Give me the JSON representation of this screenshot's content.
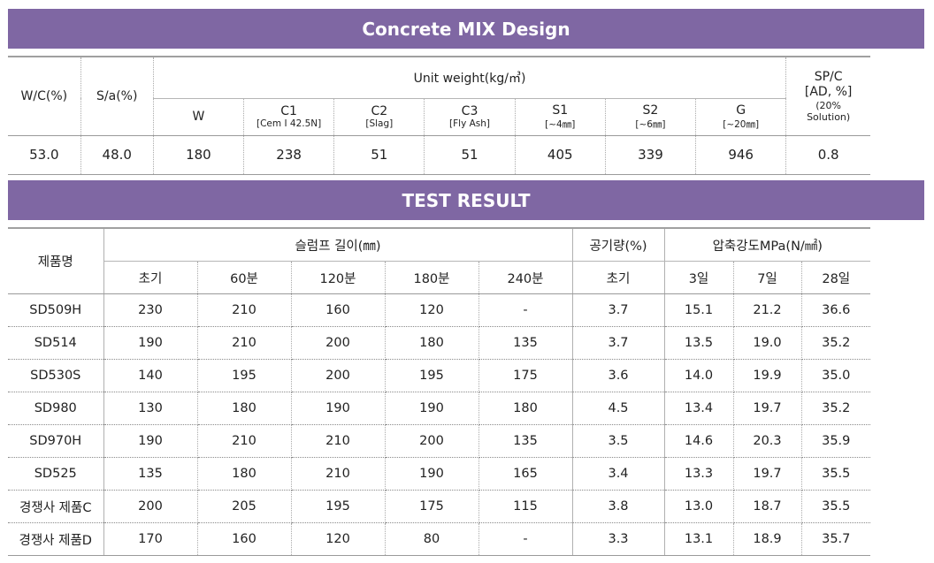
{
  "mix": {
    "title": "Concrete MIX Design",
    "headers": {
      "wc": "W/C(%)",
      "sa": "S/a(%)",
      "unit": "Unit weight(kg/㎥)",
      "spc_line1": "SP/C",
      "spc_line2": "[AD, %]",
      "spc_line3": "(20%",
      "spc_line4": "Solution)"
    },
    "columns": [
      {
        "label": "W",
        "sub": ""
      },
      {
        "label": "C1",
        "sub": "[Cem Ⅰ 42.5N]"
      },
      {
        "label": "C2",
        "sub": "[Slag]"
      },
      {
        "label": "C3",
        "sub": "[Fly Ash]"
      },
      {
        "label": "S1",
        "sub": "[~4㎜]"
      },
      {
        "label": "S2",
        "sub": "[~6㎜]"
      },
      {
        "label": "G",
        "sub": "[~20㎜]"
      }
    ],
    "values": {
      "wc": "53.0",
      "sa": "48.0",
      "W": "180",
      "C1": "238",
      "C2": "51",
      "C3": "51",
      "S1": "405",
      "S2": "339",
      "G": "946",
      "spc": "0.8"
    }
  },
  "test": {
    "title": "TEST RESULT",
    "headers": {
      "product": "제품명",
      "slump": "슬럼프 길이(㎜)",
      "air": "공기량(%)",
      "strength": "압축강도MPa(N/㎟)",
      "slump_cols": [
        "초기",
        "60분",
        "120분",
        "180분",
        "240분"
      ],
      "air_cols": [
        "초기"
      ],
      "strength_cols": [
        "3일",
        "7일",
        "28일"
      ]
    },
    "rows": [
      {
        "name": "SD509H",
        "vals": [
          "230",
          "210",
          "160",
          "120",
          "-",
          "3.7",
          "15.1",
          "21.2",
          "36.6"
        ]
      },
      {
        "name": "SD514",
        "vals": [
          "190",
          "210",
          "200",
          "180",
          "135",
          "3.7",
          "13.5",
          "19.0",
          "35.2"
        ]
      },
      {
        "name": "SD530S",
        "vals": [
          "140",
          "195",
          "200",
          "195",
          "175",
          "3.6",
          "14.0",
          "19.9",
          "35.0"
        ]
      },
      {
        "name": "SD980",
        "vals": [
          "130",
          "180",
          "190",
          "190",
          "180",
          "4.5",
          "13.4",
          "19.7",
          "35.2"
        ]
      },
      {
        "name": "SD970H",
        "vals": [
          "190",
          "210",
          "210",
          "200",
          "135",
          "3.5",
          "14.6",
          "20.3",
          "35.9"
        ]
      },
      {
        "name": "SD525",
        "vals": [
          "135",
          "180",
          "210",
          "190",
          "165",
          "3.4",
          "13.3",
          "19.7",
          "35.5"
        ]
      },
      {
        "name": "경쟁사 제품C",
        "vals": [
          "200",
          "205",
          "195",
          "175",
          "115",
          "3.8",
          "13.0",
          "18.7",
          "35.5"
        ]
      },
      {
        "name": "경쟁사 제품D",
        "vals": [
          "170",
          "160",
          "120",
          "80",
          "-",
          "3.3",
          "13.1",
          "18.9",
          "35.7"
        ]
      }
    ]
  },
  "colors": {
    "banner": "#7f67a3",
    "banner_text": "#ffffff"
  }
}
